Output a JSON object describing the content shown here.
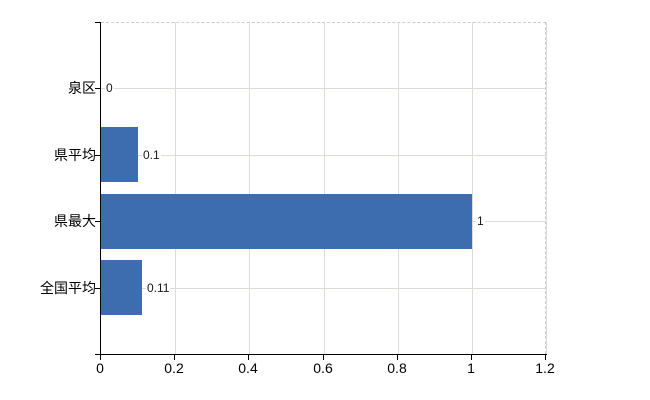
{
  "chart_data": {
    "type": "bar",
    "orientation": "horizontal",
    "categories": [
      "泉区",
      "県平均",
      "県最大",
      "全国平均"
    ],
    "values": [
      0,
      0.1,
      1,
      0.11
    ],
    "value_labels": [
      "0",
      "0.1",
      "1",
      "0.11"
    ],
    "xlim": [
      0,
      1.2
    ],
    "x_tick_values": [
      0,
      0.2,
      0.4,
      0.6,
      0.8,
      1,
      1.2
    ],
    "x_tick_labels": [
      "0",
      "0.2",
      "0.4",
      "0.6",
      "0.8",
      "1",
      "1.2"
    ],
    "grid": true,
    "legend": false,
    "title": "",
    "colors": {
      "bar": "#3d6dae",
      "gridline": "#d9ded9",
      "plot_border_dashed": "#cfcccf",
      "axis": "#000000",
      "label_text": "#000000"
    }
  }
}
